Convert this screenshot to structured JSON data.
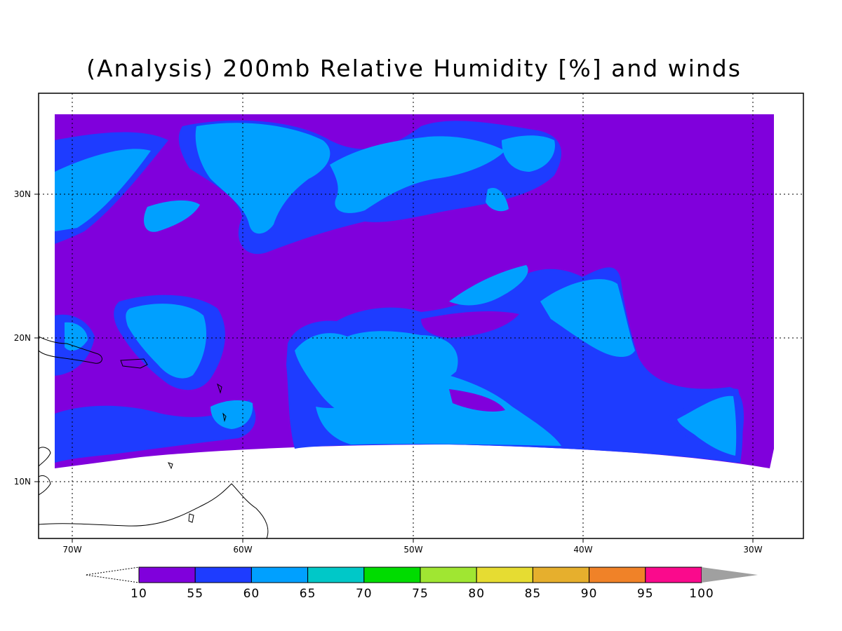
{
  "title": "(Analysis) 200mb Relative Humidity [%] and winds",
  "axes": {
    "lon_ticks": [
      "70W",
      "60W",
      "50W",
      "40W",
      "30W"
    ],
    "lat_ticks": [
      "30N",
      "20N",
      "10N"
    ],
    "grid": "dotted"
  },
  "colorbar": {
    "labels": [
      "10",
      "55",
      "60",
      "65",
      "70",
      "75",
      "80",
      "85",
      "90",
      "95",
      "100"
    ],
    "colors": [
      "#8000dc",
      "#1e3cff",
      "#00a0ff",
      "#00c8c8",
      "#00dc00",
      "#a0e632",
      "#e6dc32",
      "#e6af2d",
      "#f08228",
      "#fa0a8c"
    ],
    "overflow_color": "#a0a0a0"
  },
  "legend_colors": {
    "rh_low": "#8000dc",
    "rh_55": "#1e3cff",
    "rh_60": "#00a0ff"
  }
}
